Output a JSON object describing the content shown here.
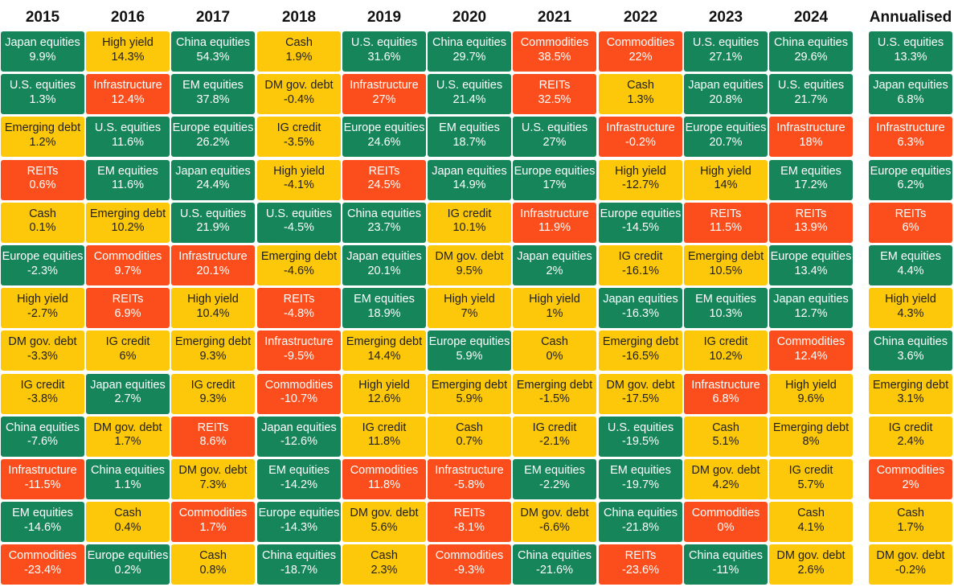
{
  "colors": {
    "green": "#16855a",
    "yellow": "#fdc80a",
    "red": "#fc4e1c"
  },
  "chart_data": {
    "type": "table",
    "columns": [
      "2015",
      "2016",
      "2017",
      "2018",
      "2019",
      "2020",
      "2021",
      "2022",
      "2023",
      "2024",
      "Annualised"
    ],
    "rows": [
      [
        [
          "Japan equities",
          "9.9%",
          "green"
        ],
        [
          "High yield",
          "14.3%",
          "yellow"
        ],
        [
          "China equities",
          "54.3%",
          "green"
        ],
        [
          "Cash",
          "1.9%",
          "yellow"
        ],
        [
          "U.S. equities",
          "31.6%",
          "green"
        ],
        [
          "China equities",
          "29.7%",
          "green"
        ],
        [
          "Commodities",
          "38.5%",
          "red"
        ],
        [
          "Commodities",
          "22%",
          "red"
        ],
        [
          "U.S. equities",
          "27.1%",
          "green"
        ],
        [
          "China equities",
          "29.6%",
          "green"
        ],
        [
          "U.S. equities",
          "13.3%",
          "green"
        ]
      ],
      [
        [
          "U.S. equities",
          "1.3%",
          "green"
        ],
        [
          "Infrastructure",
          "12.4%",
          "red"
        ],
        [
          "EM equities",
          "37.8%",
          "green"
        ],
        [
          "DM gov. debt",
          "-0.4%",
          "yellow"
        ],
        [
          "Infrastructure",
          "27%",
          "red"
        ],
        [
          "U.S. equities",
          "21.4%",
          "green"
        ],
        [
          "REITs",
          "32.5%",
          "red"
        ],
        [
          "Cash",
          "1.3%",
          "yellow"
        ],
        [
          "Japan equities",
          "20.8%",
          "green"
        ],
        [
          "U.S. equities",
          "21.7%",
          "green"
        ],
        [
          "Japan equities",
          "6.8%",
          "green"
        ]
      ],
      [
        [
          "Emerging debt",
          "1.2%",
          "yellow"
        ],
        [
          "U.S. equities",
          "11.6%",
          "green"
        ],
        [
          "Europe equities",
          "26.2%",
          "green"
        ],
        [
          "IG credit",
          "-3.5%",
          "yellow"
        ],
        [
          "Europe equities",
          "24.6%",
          "green"
        ],
        [
          "EM equities",
          "18.7%",
          "green"
        ],
        [
          "U.S. equities",
          "27%",
          "green"
        ],
        [
          "Infrastructure",
          "-0.2%",
          "red"
        ],
        [
          "Europe equities",
          "20.7%",
          "green"
        ],
        [
          "Infrastructure",
          "18%",
          "red"
        ],
        [
          "Infrastructure",
          "6.3%",
          "red"
        ]
      ],
      [
        [
          "REITs",
          "0.6%",
          "red"
        ],
        [
          "EM equities",
          "11.6%",
          "green"
        ],
        [
          "Japan equities",
          "24.4%",
          "green"
        ],
        [
          "High yield",
          "-4.1%",
          "yellow"
        ],
        [
          "REITs",
          "24.5%",
          "red"
        ],
        [
          "Japan equities",
          "14.9%",
          "green"
        ],
        [
          "Europe equities",
          "17%",
          "green"
        ],
        [
          "High yield",
          "-12.7%",
          "yellow"
        ],
        [
          "High yield",
          "14%",
          "yellow"
        ],
        [
          "EM equities",
          "17.2%",
          "green"
        ],
        [
          "Europe equities",
          "6.2%",
          "green"
        ]
      ],
      [
        [
          "Cash",
          "0.1%",
          "yellow"
        ],
        [
          "Emerging debt",
          "10.2%",
          "yellow"
        ],
        [
          "U.S. equities",
          "21.9%",
          "green"
        ],
        [
          "U.S. equities",
          "-4.5%",
          "green"
        ],
        [
          "China equities",
          "23.7%",
          "green"
        ],
        [
          "IG credit",
          "10.1%",
          "yellow"
        ],
        [
          "Infrastructure",
          "11.9%",
          "red"
        ],
        [
          "Europe equities",
          "-14.5%",
          "green"
        ],
        [
          "REITs",
          "11.5%",
          "red"
        ],
        [
          "REITs",
          "13.9%",
          "red"
        ],
        [
          "REITs",
          "6%",
          "red"
        ]
      ],
      [
        [
          "Europe equities",
          "-2.3%",
          "green"
        ],
        [
          "Commodities",
          "9.7%",
          "red"
        ],
        [
          "Infrastructure",
          "20.1%",
          "red"
        ],
        [
          "Emerging debt",
          "-4.6%",
          "yellow"
        ],
        [
          "Japan equities",
          "20.1%",
          "green"
        ],
        [
          "DM gov. debt",
          "9.5%",
          "yellow"
        ],
        [
          "Japan equities",
          "2%",
          "green"
        ],
        [
          "IG credit",
          "-16.1%",
          "yellow"
        ],
        [
          "Emerging debt",
          "10.5%",
          "yellow"
        ],
        [
          "Europe equities",
          "13.4%",
          "green"
        ],
        [
          "EM equities",
          "4.4%",
          "green"
        ]
      ],
      [
        [
          "High yield",
          "-2.7%",
          "yellow"
        ],
        [
          "REITs",
          "6.9%",
          "red"
        ],
        [
          "High yield",
          "10.4%",
          "yellow"
        ],
        [
          "REITs",
          "-4.8%",
          "red"
        ],
        [
          "EM equities",
          "18.9%",
          "green"
        ],
        [
          "High yield",
          "7%",
          "yellow"
        ],
        [
          "High yield",
          "1%",
          "yellow"
        ],
        [
          "Japan equities",
          "-16.3%",
          "green"
        ],
        [
          "EM equities",
          "10.3%",
          "green"
        ],
        [
          "Japan equities",
          "12.7%",
          "green"
        ],
        [
          "High yield",
          "4.3%",
          "yellow"
        ]
      ],
      [
        [
          "DM gov. debt",
          "-3.3%",
          "yellow"
        ],
        [
          "IG credit",
          "6%",
          "yellow"
        ],
        [
          "Emerging debt",
          "9.3%",
          "yellow"
        ],
        [
          "Infrastructure",
          "-9.5%",
          "red"
        ],
        [
          "Emerging debt",
          "14.4%",
          "yellow"
        ],
        [
          "Europe equities",
          "5.9%",
          "green"
        ],
        [
          "Cash",
          "0%",
          "yellow"
        ],
        [
          "Emerging debt",
          "-16.5%",
          "yellow"
        ],
        [
          "IG credit",
          "10.2%",
          "yellow"
        ],
        [
          "Commodities",
          "12.4%",
          "red"
        ],
        [
          "China equities",
          "3.6%",
          "green"
        ]
      ],
      [
        [
          "IG credit",
          "-3.8%",
          "yellow"
        ],
        [
          "Japan equities",
          "2.7%",
          "green"
        ],
        [
          "IG credit",
          "9.3%",
          "yellow"
        ],
        [
          "Commodities",
          "-10.7%",
          "red"
        ],
        [
          "High yield",
          "12.6%",
          "yellow"
        ],
        [
          "Emerging debt",
          "5.9%",
          "yellow"
        ],
        [
          "Emerging debt",
          "-1.5%",
          "yellow"
        ],
        [
          "DM gov. debt",
          "-17.5%",
          "yellow"
        ],
        [
          "Infrastructure",
          "6.8%",
          "red"
        ],
        [
          "High yield",
          "9.6%",
          "yellow"
        ],
        [
          "Emerging debt",
          "3.1%",
          "yellow"
        ]
      ],
      [
        [
          "China equities",
          "-7.6%",
          "green"
        ],
        [
          "DM gov. debt",
          "1.7%",
          "yellow"
        ],
        [
          "REITs",
          "8.6%",
          "red"
        ],
        [
          "Japan equities",
          "-12.6%",
          "green"
        ],
        [
          "IG credit",
          "11.8%",
          "yellow"
        ],
        [
          "Cash",
          "0.7%",
          "yellow"
        ],
        [
          "IG credit",
          "-2.1%",
          "yellow"
        ],
        [
          "U.S. equities",
          "-19.5%",
          "green"
        ],
        [
          "Cash",
          "5.1%",
          "yellow"
        ],
        [
          "Emerging debt",
          "8%",
          "yellow"
        ],
        [
          "IG credit",
          "2.4%",
          "yellow"
        ]
      ],
      [
        [
          "Infrastructure",
          "-11.5%",
          "red"
        ],
        [
          "China equities",
          "1.1%",
          "green"
        ],
        [
          "DM gov. debt",
          "7.3%",
          "yellow"
        ],
        [
          "EM equities",
          "-14.2%",
          "green"
        ],
        [
          "Commodities",
          "11.8%",
          "red"
        ],
        [
          "Infrastructure",
          "-5.8%",
          "red"
        ],
        [
          "EM equities",
          "-2.2%",
          "green"
        ],
        [
          "EM equities",
          "-19.7%",
          "green"
        ],
        [
          "DM gov. debt",
          "4.2%",
          "yellow"
        ],
        [
          "IG credit",
          "5.7%",
          "yellow"
        ],
        [
          "Commodities",
          "2%",
          "red"
        ]
      ],
      [
        [
          "EM equities",
          "-14.6%",
          "green"
        ],
        [
          "Cash",
          "0.4%",
          "yellow"
        ],
        [
          "Commodities",
          "1.7%",
          "red"
        ],
        [
          "Europe equities",
          "-14.3%",
          "green"
        ],
        [
          "DM gov. debt",
          "5.6%",
          "yellow"
        ],
        [
          "REITs",
          "-8.1%",
          "red"
        ],
        [
          "DM gov. debt",
          "-6.6%",
          "yellow"
        ],
        [
          "China equities",
          "-21.8%",
          "green"
        ],
        [
          "Commodities",
          "0%",
          "red"
        ],
        [
          "Cash",
          "4.1%",
          "yellow"
        ],
        [
          "Cash",
          "1.7%",
          "yellow"
        ]
      ],
      [
        [
          "Commodities",
          "-23.4%",
          "red"
        ],
        [
          "Europe equities",
          "0.2%",
          "green"
        ],
        [
          "Cash",
          "0.8%",
          "yellow"
        ],
        [
          "China equities",
          "-18.7%",
          "green"
        ],
        [
          "Cash",
          "2.3%",
          "yellow"
        ],
        [
          "Commodities",
          "-9.3%",
          "red"
        ],
        [
          "China equities",
          "-21.6%",
          "green"
        ],
        [
          "REITs",
          "-23.6%",
          "red"
        ],
        [
          "China equities",
          "-11%",
          "green"
        ],
        [
          "DM gov. debt",
          "2.6%",
          "yellow"
        ],
        [
          "DM gov. debt",
          "-0.2%",
          "yellow"
        ]
      ]
    ]
  }
}
